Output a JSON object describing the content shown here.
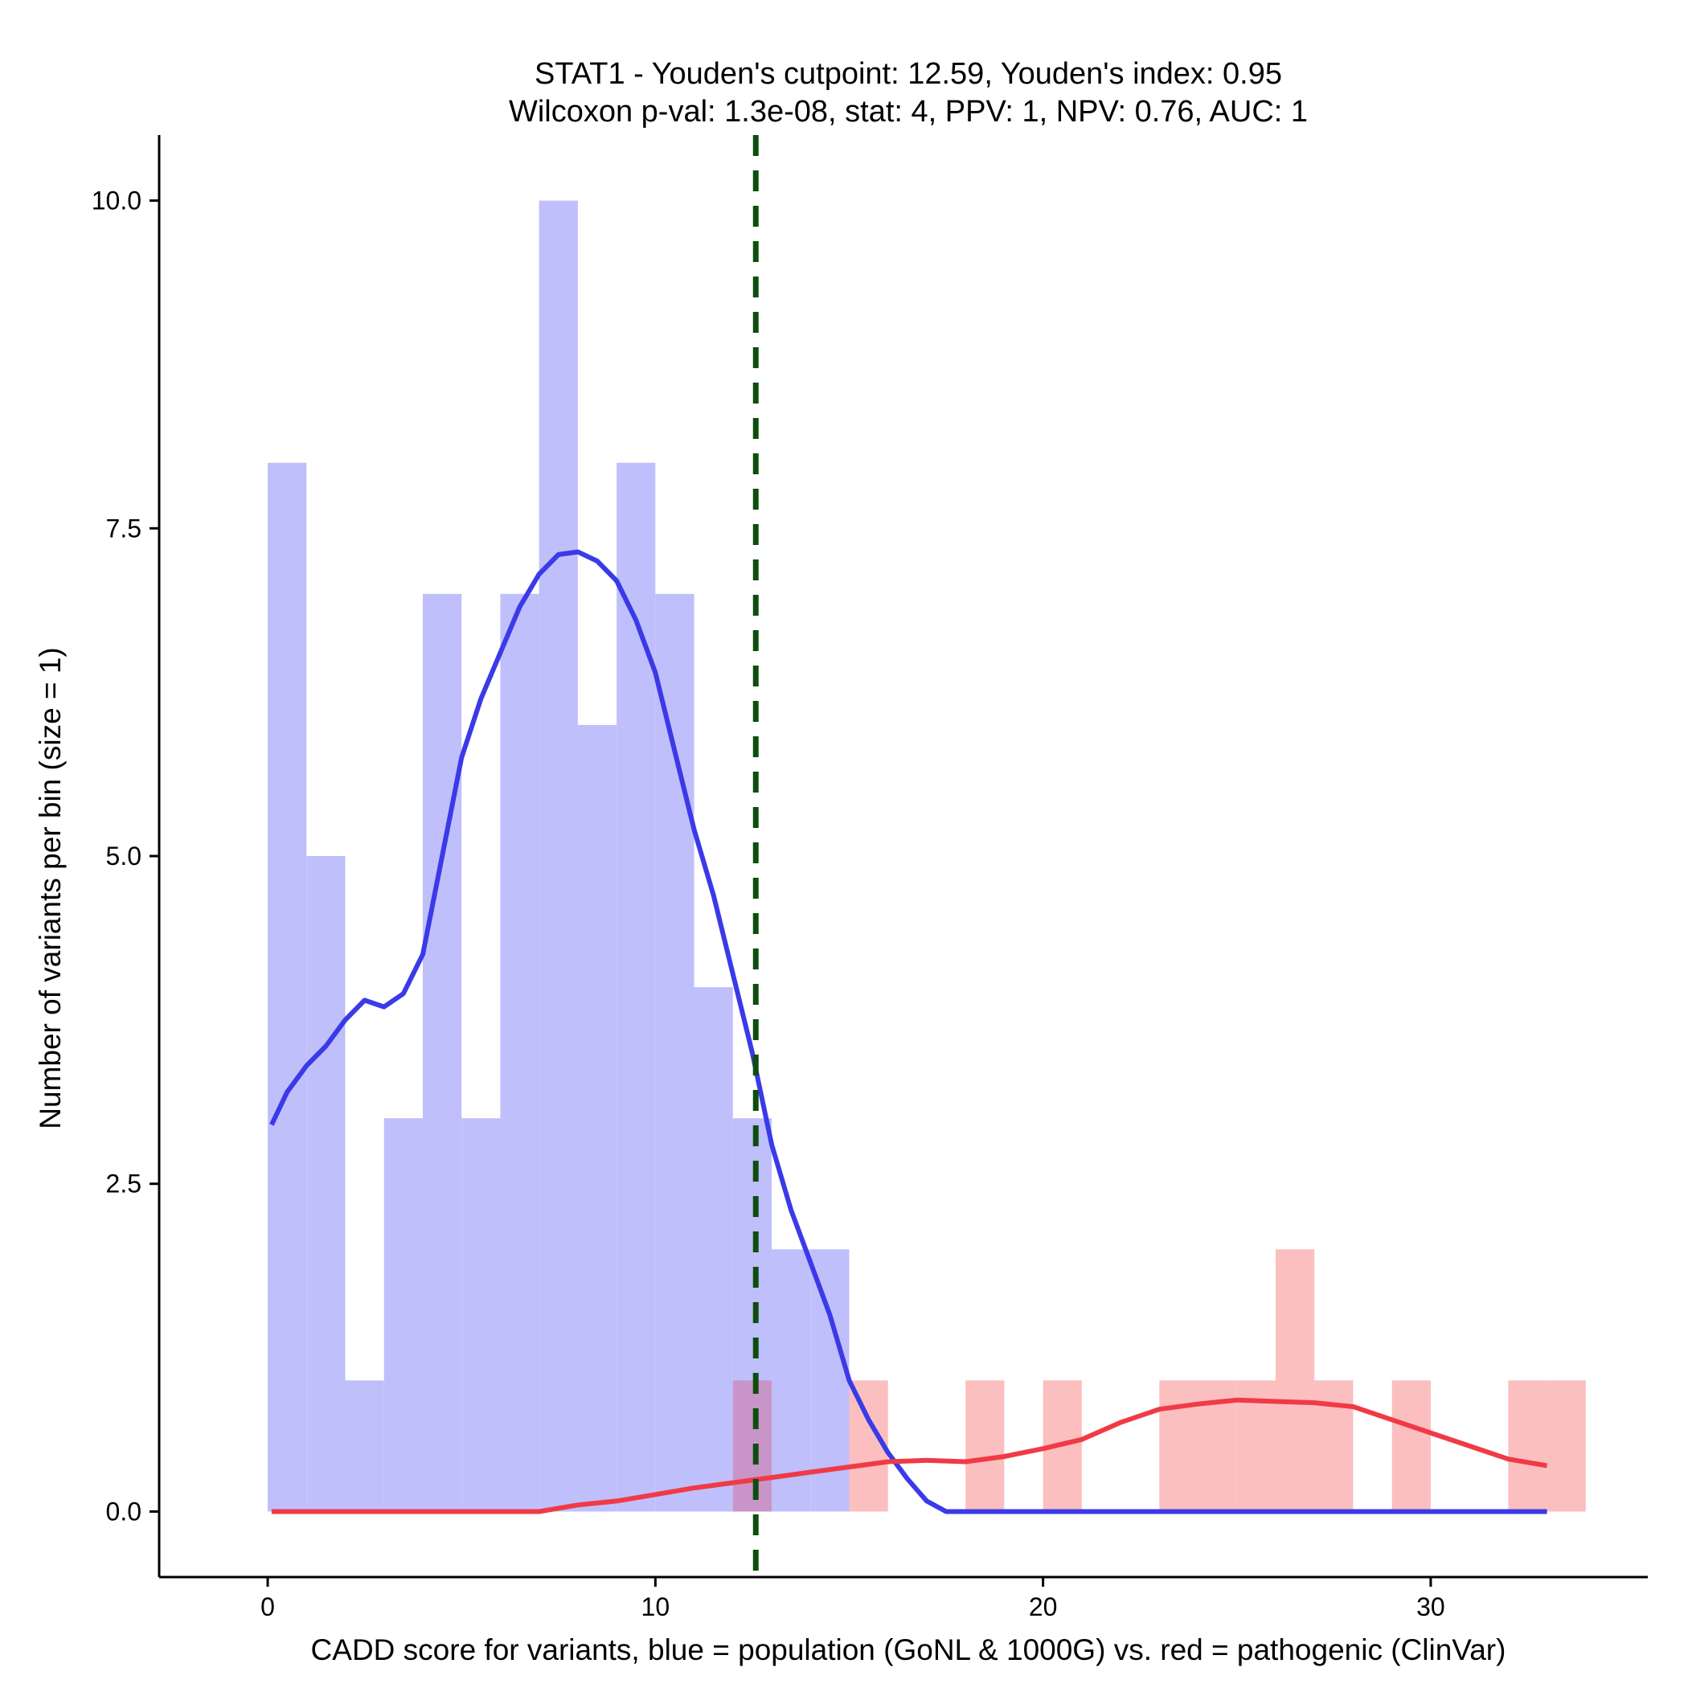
{
  "chart_data": {
    "type": "histogram",
    "title_line1": "STAT1 - Youden's cutpoint: 12.59, Youden's index: 0.95",
    "title_line2": "Wilcoxon p-val: 1.3e-08, stat: 4, PPV: 1, NPV: 0.76, AUC: 1",
    "xlabel": "CADD score for variants, blue = population (GoNL & 1000G) vs. red = pathogenic (ClinVar)",
    "ylabel": "Number of variants per bin (size = 1)",
    "xlim": [
      -2.8,
      35.6
    ],
    "ylim": [
      -0.5,
      10.5
    ],
    "x_ticks": [
      0,
      10,
      20,
      30
    ],
    "x_tick_labels": [
      "0",
      "10",
      "20",
      "30"
    ],
    "y_ticks": [
      0,
      2.5,
      5,
      7.5,
      10
    ],
    "y_tick_labels": [
      "0.0",
      "2.5",
      "5.0",
      "7.5",
      "10.0"
    ],
    "bin_size": 1,
    "cutpoint": 12.59,
    "series": [
      {
        "name": "population (GoNL & 1000G)",
        "bar_color": "#bfbffb",
        "curve_color": "#3a3ae8",
        "bins": [
          {
            "x0": 0,
            "count": 8
          },
          {
            "x0": 1,
            "count": 5
          },
          {
            "x0": 2,
            "count": 1
          },
          {
            "x0": 3,
            "count": 3
          },
          {
            "x0": 4,
            "count": 7
          },
          {
            "x0": 5,
            "count": 3
          },
          {
            "x0": 6,
            "count": 7
          },
          {
            "x0": 7,
            "count": 10
          },
          {
            "x0": 8,
            "count": 6
          },
          {
            "x0": 9,
            "count": 8
          },
          {
            "x0": 10,
            "count": 7
          },
          {
            "x0": 11,
            "count": 4
          },
          {
            "x0": 12,
            "count": 3
          },
          {
            "x0": 13,
            "count": 2
          },
          {
            "x0": 14,
            "count": 2
          }
        ],
        "density_curve": [
          [
            0.1,
            2.95
          ],
          [
            0.5,
            3.2
          ],
          [
            1.0,
            3.4
          ],
          [
            1.5,
            3.55
          ],
          [
            2.0,
            3.75
          ],
          [
            2.5,
            3.9
          ],
          [
            3.0,
            3.85
          ],
          [
            3.5,
            3.95
          ],
          [
            4.0,
            4.25
          ],
          [
            4.5,
            5.0
          ],
          [
            5.0,
            5.75
          ],
          [
            5.5,
            6.2
          ],
          [
            6.0,
            6.55
          ],
          [
            6.5,
            6.9
          ],
          [
            7.0,
            7.15
          ],
          [
            7.5,
            7.3
          ],
          [
            8.0,
            7.32
          ],
          [
            8.5,
            7.25
          ],
          [
            9.0,
            7.1
          ],
          [
            9.5,
            6.8
          ],
          [
            10.0,
            6.4
          ],
          [
            10.5,
            5.8
          ],
          [
            11.0,
            5.2
          ],
          [
            11.5,
            4.7
          ],
          [
            12.0,
            4.1
          ],
          [
            12.5,
            3.5
          ],
          [
            13.0,
            2.8
          ],
          [
            13.5,
            2.3
          ],
          [
            14.0,
            1.9
          ],
          [
            14.5,
            1.5
          ],
          [
            15.0,
            1.0
          ],
          [
            15.5,
            0.7
          ],
          [
            16.0,
            0.45
          ],
          [
            16.5,
            0.25
          ],
          [
            17.0,
            0.08
          ],
          [
            17.5,
            0.0
          ],
          [
            18.0,
            0.0
          ],
          [
            25.0,
            0.0
          ],
          [
            33.0,
            0.0
          ]
        ]
      },
      {
        "name": "pathogenic (ClinVar)",
        "bar_color": "#fbbfbf",
        "curve_color": "#f03a46",
        "bins": [
          {
            "x0": 12,
            "count": 1
          },
          {
            "x0": 15,
            "count": 1
          },
          {
            "x0": 18,
            "count": 1
          },
          {
            "x0": 20,
            "count": 1
          },
          {
            "x0": 23,
            "count": 1
          },
          {
            "x0": 24,
            "count": 1
          },
          {
            "x0": 25,
            "count": 1
          },
          {
            "x0": 26,
            "count": 2
          },
          {
            "x0": 27,
            "count": 1
          },
          {
            "x0": 29,
            "count": 1
          },
          {
            "x0": 32,
            "count": 1
          },
          {
            "x0": 33,
            "count": 1
          }
        ],
        "density_curve": [
          [
            0.1,
            0.0
          ],
          [
            7.0,
            0.0
          ],
          [
            8.0,
            0.05
          ],
          [
            9.0,
            0.08
          ],
          [
            10.0,
            0.13
          ],
          [
            11.0,
            0.18
          ],
          [
            12.0,
            0.22
          ],
          [
            13.0,
            0.26
          ],
          [
            14.0,
            0.3
          ],
          [
            15.0,
            0.34
          ],
          [
            16.0,
            0.38
          ],
          [
            17.0,
            0.39
          ],
          [
            18.0,
            0.38
          ],
          [
            19.0,
            0.42
          ],
          [
            20.0,
            0.48
          ],
          [
            21.0,
            0.55
          ],
          [
            22.0,
            0.68
          ],
          [
            23.0,
            0.78
          ],
          [
            24.0,
            0.82
          ],
          [
            25.0,
            0.85
          ],
          [
            26.0,
            0.84
          ],
          [
            27.0,
            0.83
          ],
          [
            28.0,
            0.8
          ],
          [
            29.0,
            0.7
          ],
          [
            30.0,
            0.6
          ],
          [
            31.0,
            0.5
          ],
          [
            32.0,
            0.4
          ],
          [
            33.0,
            0.35
          ]
        ]
      }
    ],
    "overlap_color": "#c995c9",
    "cutpoint_color": "#0f4d0f"
  }
}
